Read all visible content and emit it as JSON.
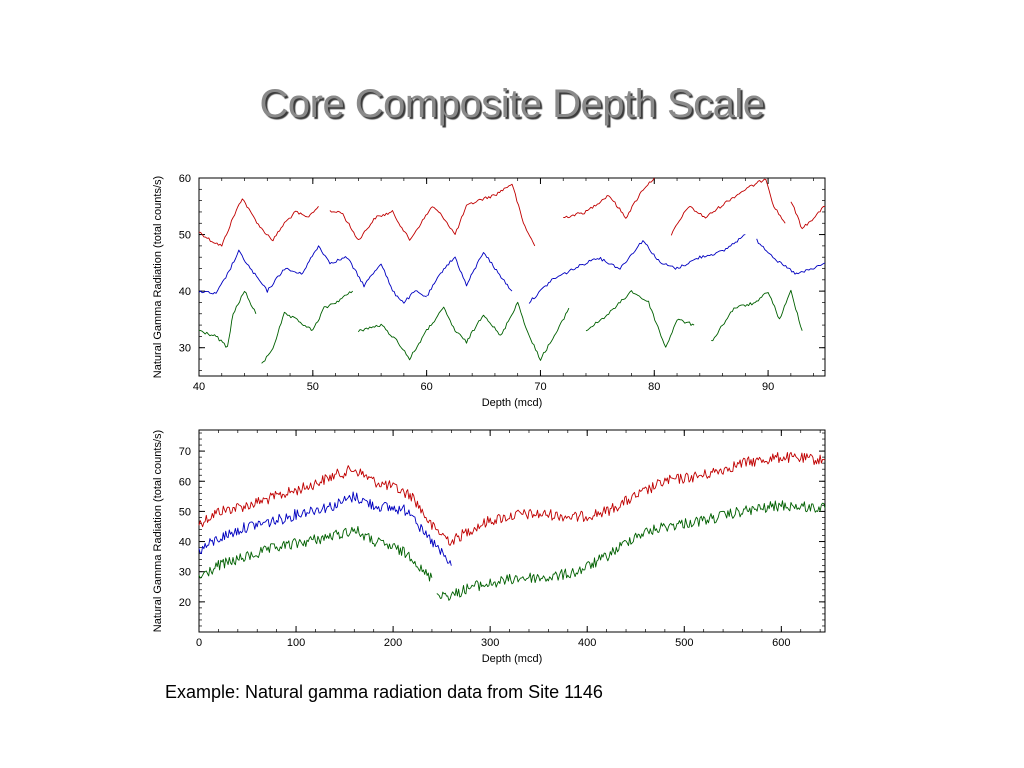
{
  "slide": {
    "title": "Core Composite Depth Scale",
    "caption": "Example: Natural gamma radiation data from Site 1146"
  },
  "colors": {
    "red": "#c00000",
    "blue": "#0000c0",
    "green": "#006000"
  },
  "chart_data": [
    {
      "type": "line",
      "xlabel": "Depth (mcd)",
      "ylabel": "Natural Gamma Radiation (total counts/s)",
      "xlim": [
        40,
        95
      ],
      "ylim": [
        25,
        60
      ],
      "xticks": [
        40,
        50,
        60,
        70,
        80,
        90
      ],
      "yticks": [
        30,
        40,
        50,
        60
      ],
      "grid": false,
      "series": [
        {
          "color": "red",
          "segments": [
            {
              "x": [
                40,
                41,
                42,
                43,
                43.8,
                44.5,
                45.5,
                46.5,
                47.5,
                48.5,
                49.5,
                50.5
              ],
              "y": [
                50.5,
                49,
                48,
                53,
                56.5,
                54,
                51,
                49,
                52,
                54,
                53,
                55
              ]
            },
            {
              "x": [
                51.5,
                52.5,
                54,
                55.5,
                57,
                58.5,
                59.5,
                60.5,
                61.5,
                62.5,
                63.5,
                64.5,
                66,
                67.5,
                68.5,
                69.5
              ],
              "y": [
                54,
                54,
                49,
                53,
                54,
                49,
                52,
                55,
                53,
                50,
                55,
                56,
                57,
                59,
                52,
                48
              ]
            },
            {
              "x": [
                72,
                74,
                76,
                77.5,
                79,
                80
              ],
              "y": [
                53,
                54,
                57,
                53,
                58,
                60
              ]
            },
            {
              "x": [
                81.5,
                83,
                84.5,
                86.5,
                88,
                89,
                89.8,
                90.5,
                91.5
              ],
              "y": [
                50,
                55,
                53,
                56,
                58,
                59,
                60,
                55,
                52
              ]
            },
            {
              "x": [
                92,
                93,
                94,
                95
              ],
              "y": [
                56,
                51,
                53,
                55
              ]
            }
          ]
        },
        {
          "color": "blue",
          "segments": [
            {
              "x": [
                40,
                41.5,
                42.5,
                43.5,
                44.5,
                46,
                47.5,
                49
              ],
              "y": [
                40,
                39.5,
                43,
                47,
                44,
                40,
                44,
                43
              ]
            },
            {
              "x": [
                49,
                50.5,
                51.5,
                53,
                54.5,
                56,
                57,
                58,
                59,
                60
              ],
              "y": [
                43,
                48,
                45,
                46,
                41,
                45,
                40,
                38,
                40,
                39
              ]
            },
            {
              "x": [
                60,
                61.5,
                62.5,
                63.5,
                65,
                66,
                67.5
              ],
              "y": [
                39,
                44,
                46,
                41,
                47,
                44,
                40
              ]
            },
            {
              "x": [
                69,
                71,
                73,
                75,
                77,
                79,
                80.5,
                82,
                84,
                86,
                88
              ],
              "y": [
                38,
                42,
                44,
                46,
                44,
                49,
                45,
                44,
                46,
                47,
                50
              ]
            },
            {
              "x": [
                89,
                91,
                92.5,
                94,
                95
              ],
              "y": [
                49,
                45,
                43,
                44,
                45
              ]
            }
          ]
        },
        {
          "color": "green",
          "segments": [
            {
              "x": [
                40,
                41.5,
                42.5,
                43,
                44,
                45
              ],
              "y": [
                33,
                32,
                30,
                36,
                40,
                36
              ]
            },
            {
              "x": [
                45.5,
                46.5,
                47.5,
                48.5,
                50,
                51,
                52,
                53.5
              ],
              "y": [
                27,
                30,
                36,
                35,
                33,
                37,
                38,
                40
              ]
            },
            {
              "x": [
                54,
                56,
                57.5,
                58.5,
                60,
                61.5,
                62.5,
                63.5,
                65,
                66.5,
                68,
                69,
                70,
                71.5,
                72.5
              ],
              "y": [
                33,
                34,
                31,
                28,
                33,
                37,
                33,
                31,
                36,
                32,
                38,
                32,
                28,
                33,
                37
              ]
            },
            {
              "x": [
                74,
                76,
                78,
                79.5,
                81,
                82,
                83.5
              ],
              "y": [
                33,
                36,
                40,
                38,
                30,
                35,
                34
              ]
            },
            {
              "x": [
                85,
                87,
                89,
                90,
                91,
                92,
                93
              ],
              "y": [
                31,
                37,
                38,
                40,
                35,
                40,
                33
              ]
            }
          ]
        }
      ]
    },
    {
      "type": "line",
      "xlabel": "Depth (mcd)",
      "ylabel": "Natural Gamma Radiation (total counts/s)",
      "xlim": [
        0,
        645
      ],
      "ylim": [
        10,
        77
      ],
      "xticks": [
        0,
        100,
        200,
        300,
        400,
        500,
        600
      ],
      "yticks": [
        20,
        30,
        40,
        50,
        60,
        70
      ],
      "grid": false,
      "series": [
        {
          "color": "red",
          "segments": [
            {
              "x": [
                0,
                20,
                50,
                80,
                110,
                140,
                160,
                180,
                200,
                220,
                240,
                260,
                280,
                300,
                330,
                360,
                390,
                420,
                450,
                480,
                520,
                560,
                600,
                645
              ],
              "y": [
                46,
                50,
                52,
                55,
                58,
                62,
                64,
                60,
                58,
                55,
                45,
                40,
                44,
                47,
                49,
                49,
                48,
                50,
                55,
                60,
                62,
                66,
                68,
                67
              ]
            }
          ]
        },
        {
          "color": "blue",
          "segments": [
            {
              "x": [
                0,
                20,
                50,
                80,
                110,
                140,
                160,
                180,
                200,
                220,
                230,
                240,
                255,
                260
              ],
              "y": [
                37,
                41,
                45,
                47,
                50,
                52,
                55,
                52,
                51,
                50,
                43,
                40,
                34,
                32
              ]
            }
          ]
        },
        {
          "color": "green",
          "segments": [
            {
              "x": [
                0,
                20,
                50,
                80,
                110,
                140,
                160,
                180,
                200,
                220,
                230,
                240
              ],
              "y": [
                28,
                32,
                35,
                38,
                40,
                42,
                44,
                40,
                38,
                35,
                30,
                28
              ]
            },
            {
              "x": [
                245,
                260,
                280,
                300,
                330,
                360,
                390,
                420,
                450,
                480,
                520,
                560,
                600,
                645
              ],
              "y": [
                23,
                22,
                25,
                26,
                28,
                28,
                30,
                35,
                42,
                45,
                47,
                50,
                52,
                51
              ]
            }
          ]
        }
      ]
    }
  ]
}
